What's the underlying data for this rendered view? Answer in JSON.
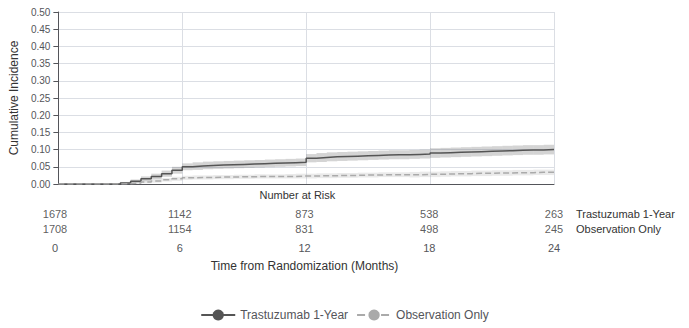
{
  "chart_data": {
    "type": "line",
    "xlabel": "Time from Randomization (Months)",
    "ylabel": "Cumulative Incidence",
    "xlim": [
      0,
      24
    ],
    "ylim": [
      0.0,
      0.5
    ],
    "xticks": [
      0,
      6,
      12,
      18,
      24
    ],
    "yticks": [
      {
        "value": 0.0,
        "label": "0.00"
      },
      {
        "value": 0.05,
        "label": "0.05"
      },
      {
        "value": 0.1,
        "label": "0.10"
      },
      {
        "value": 0.15,
        "label": "0.15"
      },
      {
        "value": 0.2,
        "label": "0.20"
      },
      {
        "value": 0.25,
        "label": "0.25"
      },
      {
        "value": 0.3,
        "label": "0.30"
      },
      {
        "value": 0.35,
        "label": "0.35"
      },
      {
        "value": 0.4,
        "label": "0.40"
      },
      {
        "value": 0.45,
        "label": "0.45"
      },
      {
        "value": 0.5,
        "label": "0.50"
      }
    ],
    "grid": true,
    "legend": "bottom",
    "x": [
      0,
      2.5,
      3,
      3.5,
      4,
      4.5,
      5,
      5.5,
      6,
      6.5,
      7,
      7.5,
      8,
      8.5,
      9,
      9.5,
      10,
      10.5,
      11,
      11.5,
      12,
      12.5,
      13,
      13.5,
      14,
      14.5,
      15,
      15.5,
      16,
      16.5,
      17,
      17.5,
      18,
      18.5,
      19,
      19.5,
      20,
      20.5,
      21,
      21.5,
      22,
      22.5,
      23,
      23.5,
      24
    ],
    "series": [
      {
        "name": "Trastuzumab 1-Year",
        "color": "#555555",
        "line_style": "solid",
        "values": [
          0.0,
          0.0,
          0.003,
          0.008,
          0.015,
          0.022,
          0.03,
          0.04,
          0.05,
          0.052,
          0.054,
          0.055,
          0.056,
          0.057,
          0.058,
          0.059,
          0.06,
          0.061,
          0.062,
          0.063,
          0.075,
          0.077,
          0.079,
          0.08,
          0.081,
          0.082,
          0.083,
          0.084,
          0.085,
          0.085,
          0.086,
          0.087,
          0.09,
          0.091,
          0.092,
          0.093,
          0.094,
          0.095,
          0.096,
          0.097,
          0.098,
          0.099,
          0.099,
          0.1,
          0.1
        ],
        "ci_upper": [
          0.0,
          0.0,
          0.006,
          0.013,
          0.022,
          0.03,
          0.039,
          0.05,
          0.06,
          0.063,
          0.065,
          0.066,
          0.067,
          0.068,
          0.069,
          0.07,
          0.071,
          0.072,
          0.073,
          0.074,
          0.087,
          0.09,
          0.092,
          0.093,
          0.094,
          0.095,
          0.096,
          0.097,
          0.098,
          0.098,
          0.099,
          0.1,
          0.104,
          0.105,
          0.106,
          0.107,
          0.108,
          0.109,
          0.11,
          0.111,
          0.112,
          0.113,
          0.113,
          0.114,
          0.114
        ],
        "ci_lower": [
          0.0,
          0.0,
          0.0,
          0.003,
          0.008,
          0.014,
          0.021,
          0.03,
          0.04,
          0.041,
          0.043,
          0.044,
          0.045,
          0.046,
          0.047,
          0.048,
          0.049,
          0.05,
          0.051,
          0.052,
          0.063,
          0.064,
          0.066,
          0.067,
          0.068,
          0.069,
          0.07,
          0.071,
          0.072,
          0.072,
          0.073,
          0.074,
          0.076,
          0.077,
          0.078,
          0.079,
          0.08,
          0.081,
          0.082,
          0.083,
          0.084,
          0.085,
          0.085,
          0.086,
          0.086
        ]
      },
      {
        "name": "Observation Only",
        "color": "#aaaaaa",
        "line_style": "dashed",
        "values": [
          0.0,
          0.0,
          0.001,
          0.003,
          0.006,
          0.009,
          0.012,
          0.015,
          0.018,
          0.019,
          0.019,
          0.02,
          0.02,
          0.021,
          0.021,
          0.022,
          0.022,
          0.022,
          0.022,
          0.023,
          0.023,
          0.024,
          0.024,
          0.025,
          0.025,
          0.026,
          0.026,
          0.027,
          0.027,
          0.027,
          0.027,
          0.028,
          0.028,
          0.029,
          0.03,
          0.03,
          0.031,
          0.031,
          0.032,
          0.032,
          0.033,
          0.033,
          0.034,
          0.034,
          0.035
        ],
        "ci_upper": [
          0.0,
          0.0,
          0.003,
          0.006,
          0.01,
          0.014,
          0.017,
          0.021,
          0.024,
          0.025,
          0.025,
          0.026,
          0.026,
          0.027,
          0.027,
          0.028,
          0.028,
          0.028,
          0.029,
          0.03,
          0.03,
          0.031,
          0.031,
          0.032,
          0.032,
          0.033,
          0.033,
          0.034,
          0.034,
          0.034,
          0.035,
          0.036,
          0.036,
          0.037,
          0.038,
          0.038,
          0.039,
          0.039,
          0.04,
          0.04,
          0.041,
          0.041,
          0.042,
          0.042,
          0.043
        ],
        "ci_lower": [
          0.0,
          0.0,
          0.0,
          0.0,
          0.002,
          0.004,
          0.007,
          0.009,
          0.012,
          0.013,
          0.013,
          0.014,
          0.014,
          0.015,
          0.015,
          0.016,
          0.016,
          0.016,
          0.016,
          0.016,
          0.016,
          0.017,
          0.017,
          0.018,
          0.018,
          0.019,
          0.019,
          0.02,
          0.02,
          0.02,
          0.019,
          0.02,
          0.02,
          0.021,
          0.022,
          0.022,
          0.023,
          0.023,
          0.024,
          0.024,
          0.025,
          0.025,
          0.026,
          0.026,
          0.027
        ]
      }
    ],
    "number_at_risk": {
      "label": "Number at Risk",
      "x": [
        0,
        6,
        12,
        18,
        24
      ],
      "rows": [
        {
          "name": "Trastuzumab 1-Year",
          "values": [
            1678,
            1142,
            873,
            538,
            263
          ]
        },
        {
          "name": "Observation Only",
          "values": [
            1708,
            1154,
            831,
            498,
            245
          ]
        }
      ]
    }
  }
}
